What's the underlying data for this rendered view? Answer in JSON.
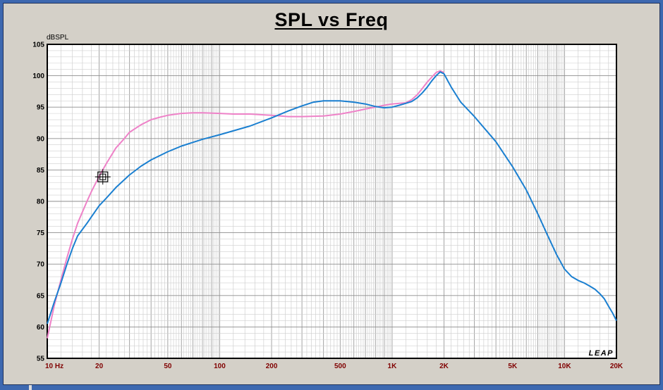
{
  "chart_data": {
    "type": "line",
    "title": "SPL vs Freq",
    "ylabel": "dBSPL",
    "xlabel": "",
    "x_scale": "log",
    "xlim": [
      10,
      20000
    ],
    "ylim": [
      55,
      105
    ],
    "y_ticks": [
      "55",
      "60",
      "65",
      "70",
      "75",
      "80",
      "85",
      "90",
      "95",
      "100",
      "105"
    ],
    "x_ticks": [
      {
        "value": 10,
        "label": "10  Hz"
      },
      {
        "value": 20,
        "label": "20"
      },
      {
        "value": 50,
        "label": "50"
      },
      {
        "value": 100,
        "label": "100"
      },
      {
        "value": 200,
        "label": "200"
      },
      {
        "value": 500,
        "label": "500"
      },
      {
        "value": 1000,
        "label": "1K"
      },
      {
        "value": 2000,
        "label": "2K"
      },
      {
        "value": 5000,
        "label": "5K"
      },
      {
        "value": 10000,
        "label": "10K"
      },
      {
        "value": 20000,
        "label": "20K"
      }
    ],
    "grid": true,
    "series": [
      {
        "color": "#ee82c8",
        "x": [
          10,
          11,
          12,
          13,
          14,
          15,
          17,
          18,
          20,
          22,
          25,
          28,
          30,
          35,
          40,
          45,
          50,
          60,
          70,
          80,
          100,
          120,
          150,
          200,
          250,
          300,
          400,
          500,
          600,
          700,
          800,
          900,
          1000,
          1100,
          1200,
          1300,
          1400,
          1500,
          1600,
          1700,
          1800,
          1900,
          2000
        ],
        "values": [
          58.2,
          63.5,
          67.5,
          71,
          74,
          76.5,
          80,
          81.5,
          84,
          86,
          88.5,
          90,
          91,
          92.2,
          93,
          93.4,
          93.7,
          94,
          94.1,
          94.1,
          94,
          93.9,
          93.9,
          93.7,
          93.5,
          93.5,
          93.6,
          93.9,
          94.3,
          94.7,
          95,
          95.3,
          95.5,
          95.6,
          95.7,
          96.2,
          97,
          98,
          99,
          99.8,
          100.5,
          100.8,
          100.5
        ]
      },
      {
        "color": "#1a7fd0",
        "x": [
          10,
          11,
          12,
          13,
          14,
          15,
          17,
          18,
          20,
          22,
          25,
          30,
          35,
          40,
          50,
          60,
          70,
          80,
          100,
          150,
          200,
          250,
          300,
          350,
          400,
          450,
          500,
          600,
          700,
          800,
          900,
          1000,
          1100,
          1200,
          1300,
          1400,
          1500,
          1600,
          1700,
          1800,
          1900,
          2000,
          2200,
          2500,
          3000,
          4000,
          5000,
          6000,
          7000,
          8000,
          9000,
          10000,
          11000,
          12000,
          13000,
          14000,
          15000,
          16000,
          17000,
          18000,
          19000,
          20000
        ],
        "values": [
          60.5,
          64,
          67,
          70,
          72.5,
          74.5,
          76.5,
          77.5,
          79.3,
          80.5,
          82.2,
          84.2,
          85.6,
          86.6,
          87.9,
          88.8,
          89.4,
          89.9,
          90.6,
          92,
          93.3,
          94.4,
          95.2,
          95.8,
          96,
          96,
          96,
          95.8,
          95.5,
          95.1,
          94.9,
          95,
          95.3,
          95.6,
          95.9,
          96.5,
          97.3,
          98.2,
          99.2,
          100,
          100.6,
          100.3,
          98.2,
          95.8,
          93.5,
          89.5,
          85.5,
          81.8,
          78,
          74.5,
          71.5,
          69.2,
          68,
          67.4,
          67,
          66.5,
          66,
          65.3,
          64.5,
          63.3,
          62.2,
          61
        ]
      }
    ],
    "marker": {
      "x": 21,
      "y": 83.9
    },
    "watermark": "LEAP"
  }
}
